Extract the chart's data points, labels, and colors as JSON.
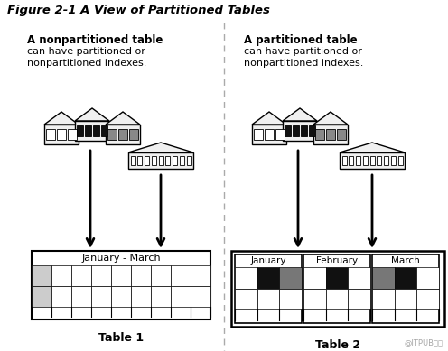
{
  "title": "Figure 2-1 A View of Partitioned Tables",
  "left_header_bold": "A nonpartitioned table",
  "left_header_text": "can have partitioned or\nnonpartitioned indexes.",
  "right_header_bold": "A partitioned table",
  "right_header_text": "can have partitioned or\nnonpartitioned indexes.",
  "left_table_label": "January - March",
  "left_table_name": "Table 1",
  "right_table_name": "Table 2",
  "right_partition_labels": [
    "January",
    "February",
    "March"
  ],
  "watermark": "@ITPUB博客",
  "bg_color": "#ffffff",
  "divider_color": "#aaaaaa",
  "building_fill": "#f0f0f0",
  "building_stroke": "#000000"
}
